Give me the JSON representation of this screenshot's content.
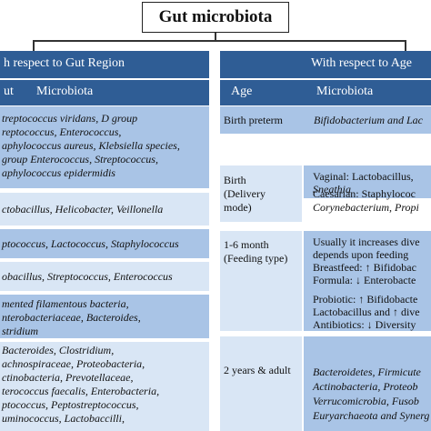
{
  "title": "Gut microbiota",
  "left": {
    "header": "h respect to Gut Region",
    "col1": "ut",
    "col2": "Microbiota",
    "rows": [
      {
        "lines": [
          "treptococcus viridans, D group",
          "reptococcus, Enterococcus,",
          "aphylococcus aureus, Klebsiella species,",
          "group Enterococcus, Streptococcus,",
          "aphylococcus epidermidis"
        ]
      },
      {
        "lines": [
          "ctobacillus, Helicobacter, Veillonella"
        ]
      },
      {
        "lines": [
          "ptococcus, Lactococcus, Staphylococcus"
        ]
      },
      {
        "lines": [
          "obacillus, Streptococcus, Enterococcus"
        ]
      },
      {
        "lines": [
          "mented filamentous bacteria,",
          "nterobacteriaceae, Bacteroides,",
          "stridium"
        ]
      },
      {
        "lines": [
          "Bacteroides, Clostridium,",
          "achnospiraceae, Proteobacteria,",
          "ctinobacteria, Prevotellaceae,",
          "terococcus faecalis, Enterobacteria,",
          "ptococcus, Peptostreptococcus,",
          "uminococcus, Lactobaccilli,"
        ]
      }
    ]
  },
  "right": {
    "header": "With respect to Age",
    "col1": "Age",
    "col2": "Microbiota",
    "rows": [
      {
        "age": [
          "Birth preterm"
        ],
        "micro": [
          "Bifidobacterium and Lac"
        ]
      },
      {
        "age": [
          "Birth",
          "(Delivery",
          "mode)"
        ],
        "micro": [
          "Vaginal: Lactobacillus,",
          "Sneathia",
          "",
          "Caesarian: Staphylococ",
          "Corynebacterium, Propi"
        ]
      },
      {
        "age": [
          "1-6 month",
          "(Feeding type)"
        ],
        "micro": [
          "Usually it increases dive",
          "depends upon feeding",
          "Breastfeed: ↑ Bifidobac",
          "Formula: ↓ Enterobacte",
          "",
          "Probiotic: ↑ Bifidobacte",
          "Lactobacillus and ↑ dive",
          "Antibiotics: ↓ Diversity"
        ]
      },
      {
        "age": [
          "2 years & adult"
        ],
        "micro": [
          "Bacteroidetes, Firmicute",
          "Actinobacteria, Proteob",
          "Verrucomicrobia, Fusob",
          "Euryarchaeota and Synerg"
        ]
      }
    ]
  }
}
